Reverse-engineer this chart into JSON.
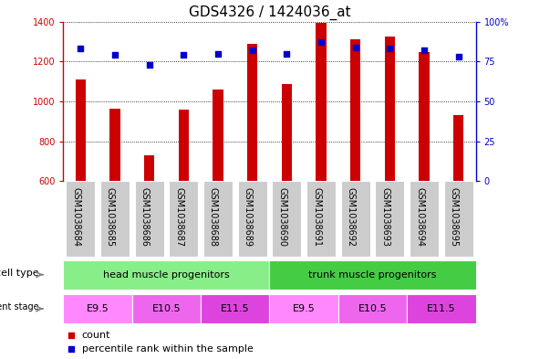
{
  "title": "GDS4326 / 1424036_at",
  "samples": [
    "GSM1038684",
    "GSM1038685",
    "GSM1038686",
    "GSM1038687",
    "GSM1038688",
    "GSM1038689",
    "GSM1038690",
    "GSM1038691",
    "GSM1038692",
    "GSM1038693",
    "GSM1038694",
    "GSM1038695"
  ],
  "counts": [
    1110,
    965,
    730,
    960,
    1060,
    1290,
    1085,
    1395,
    1310,
    1325,
    1245,
    930
  ],
  "percentiles": [
    83,
    79,
    73,
    79,
    80,
    82,
    80,
    87,
    84,
    83,
    82,
    78
  ],
  "ymin": 600,
  "ymax": 1400,
  "yticks": [
    600,
    800,
    1000,
    1200,
    1400
  ],
  "y2min": 0,
  "y2max": 100,
  "y2ticks": [
    0,
    25,
    50,
    75,
    100
  ],
  "y2ticklabels": [
    "0",
    "25",
    "50",
    "75",
    "100%"
  ],
  "bar_color": "#cc0000",
  "dot_color": "#0000cc",
  "bar_width": 0.3,
  "cell_types": [
    {
      "label": "head muscle progenitors",
      "start": 0,
      "end": 6,
      "color": "#88ee88"
    },
    {
      "label": "trunk muscle progenitors",
      "start": 6,
      "end": 12,
      "color": "#44cc44"
    }
  ],
  "dev_stages": [
    {
      "label": "E9.5",
      "start": 0,
      "end": 2,
      "color": "#ff88ff"
    },
    {
      "label": "E10.5",
      "start": 2,
      "end": 4,
      "color": "#ee66ee"
    },
    {
      "label": "E11.5",
      "start": 4,
      "end": 6,
      "color": "#dd44dd"
    },
    {
      "label": "E9.5",
      "start": 6,
      "end": 8,
      "color": "#ff88ff"
    },
    {
      "label": "E10.5",
      "start": 8,
      "end": 10,
      "color": "#ee66ee"
    },
    {
      "label": "E11.5",
      "start": 10,
      "end": 12,
      "color": "#dd44dd"
    }
  ],
  "bg_color": "#ffffff",
  "grid_color": "#000000",
  "left_spine_color": "#cc0000",
  "right_spine_color": "#0000cc",
  "tick_label_bg": "#cccccc",
  "tick_label_fontsize": 7,
  "label_fontsize": 8,
  "title_fontsize": 11
}
